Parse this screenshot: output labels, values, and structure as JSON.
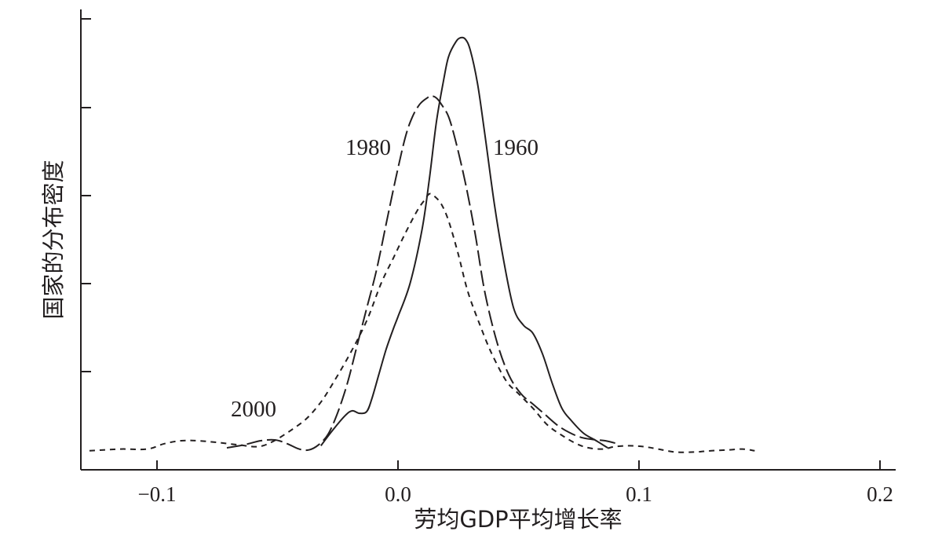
{
  "chart_data": {
    "type": "line",
    "title": "",
    "xlabel": "劳均GDP平均增长率",
    "ylabel": "国家的分布密度",
    "xlim": [
      -0.13,
      0.205
    ],
    "ylim": [
      0,
      1.0
    ],
    "x_ticks": [
      -0.1,
      0.0,
      0.1,
      0.2
    ],
    "x_tick_labels": [
      "−0.1",
      "0.0",
      "0.1",
      "0.2"
    ],
    "y_ticks": [
      0.2,
      0.4,
      0.6,
      0.8,
      1.0
    ],
    "y_tick_labels": [],
    "grid": false,
    "legend": "none (series labelled directly on the chart)",
    "series": [
      {
        "name": "1960",
        "line_style": "solid",
        "color": "#231f20",
        "x": [
          -0.032,
          -0.027,
          -0.022,
          -0.019,
          -0.016,
          -0.013,
          -0.011,
          -0.008,
          -0.005,
          -0.002,
          0.0,
          0.005,
          0.01,
          0.013,
          0.016,
          0.019,
          0.021,
          0.024,
          0.026,
          0.028,
          0.03,
          0.033,
          0.036,
          0.04,
          0.044,
          0.048,
          0.052,
          0.056,
          0.06,
          0.064,
          0.068,
          0.072,
          0.077,
          0.082,
          0.087
        ],
        "y": [
          0.02,
          0.058,
          0.092,
          0.104,
          0.098,
          0.102,
          0.13,
          0.19,
          0.25,
          0.3,
          0.33,
          0.41,
          0.54,
          0.66,
          0.8,
          0.9,
          0.955,
          0.99,
          1.0,
          0.996,
          0.97,
          0.89,
          0.77,
          0.6,
          0.46,
          0.35,
          0.31,
          0.29,
          0.24,
          0.17,
          0.11,
          0.08,
          0.05,
          0.033,
          0.015
        ]
      },
      {
        "name": "1980",
        "line_style": "dashed",
        "color": "#231f20",
        "x": [
          -0.071,
          -0.064,
          -0.057,
          -0.051,
          -0.046,
          -0.041,
          -0.037,
          -0.033,
          -0.029,
          -0.025,
          -0.021,
          -0.017,
          -0.013,
          -0.009,
          -0.005,
          -0.001,
          0.003,
          0.006,
          0.009,
          0.012,
          0.014,
          0.016,
          0.018,
          0.021,
          0.024,
          0.028,
          0.032,
          0.036,
          0.041,
          0.046,
          0.051,
          0.056,
          0.061,
          0.066,
          0.071,
          0.076,
          0.081,
          0.086,
          0.091
        ],
        "y": [
          0.015,
          0.022,
          0.032,
          0.034,
          0.025,
          0.012,
          0.01,
          0.022,
          0.048,
          0.1,
          0.17,
          0.26,
          0.35,
          0.44,
          0.55,
          0.66,
          0.76,
          0.81,
          0.84,
          0.855,
          0.86,
          0.855,
          0.84,
          0.81,
          0.75,
          0.65,
          0.53,
          0.39,
          0.27,
          0.19,
          0.145,
          0.12,
          0.095,
          0.07,
          0.052,
          0.04,
          0.035,
          0.032,
          0.025
        ]
      },
      {
        "name": "2000",
        "line_style": "dotted",
        "color": "#231f20",
        "x": [
          -0.128,
          -0.115,
          -0.104,
          -0.097,
          -0.09,
          -0.083,
          -0.075,
          -0.066,
          -0.058,
          -0.052,
          -0.045,
          -0.038,
          -0.032,
          -0.027,
          -0.02,
          -0.013,
          -0.007,
          -0.002,
          0.003,
          0.008,
          0.011,
          0.013,
          0.015,
          0.018,
          0.021,
          0.025,
          0.029,
          0.034,
          0.039,
          0.045,
          0.05,
          0.056,
          0.062,
          0.068,
          0.074,
          0.079,
          0.085,
          0.09,
          0.096,
          0.102,
          0.108,
          0.115,
          0.123,
          0.13,
          0.137,
          0.143,
          0.148
        ],
        "y": [
          0.008,
          0.012,
          0.012,
          0.025,
          0.032,
          0.032,
          0.028,
          0.022,
          0.018,
          0.03,
          0.055,
          0.085,
          0.125,
          0.17,
          0.24,
          0.32,
          0.41,
          0.47,
          0.53,
          0.585,
          0.61,
          0.625,
          0.62,
          0.6,
          0.56,
          0.48,
          0.39,
          0.31,
          0.24,
          0.175,
          0.145,
          0.11,
          0.07,
          0.045,
          0.025,
          0.015,
          0.012,
          0.018,
          0.02,
          0.018,
          0.012,
          0.005,
          0.005,
          0.008,
          0.01,
          0.012,
          0.008
        ]
      }
    ]
  }
}
